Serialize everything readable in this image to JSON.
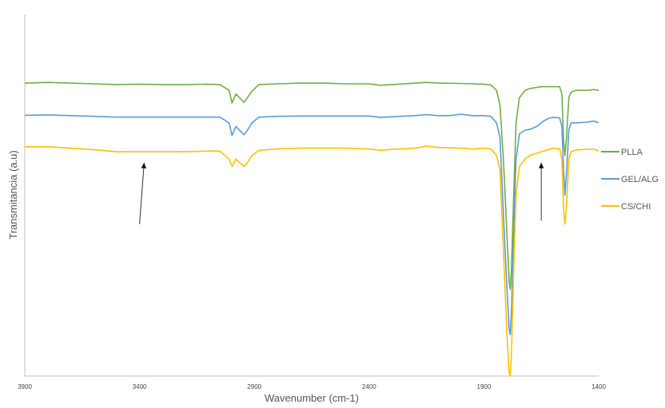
{
  "chart_data": {
    "type": "line",
    "title": "",
    "xlabel": "Wavenumber (cm-1)",
    "ylabel": "Transmitancia (a.u)",
    "xlim": [
      3900,
      1400
    ],
    "ylim": [
      0,
      1
    ],
    "x_reversed": true,
    "x_ticks": [
      "3900",
      "3400",
      "2900",
      "2400",
      "1900",
      "1400"
    ],
    "grid": false,
    "legend_position": "right",
    "series": [
      {
        "name": "PLLA",
        "color": "#70ad47",
        "points": [
          [
            3900,
            0.81
          ],
          [
            3800,
            0.812
          ],
          [
            3700,
            0.81
          ],
          [
            3600,
            0.808
          ],
          [
            3500,
            0.806
          ],
          [
            3400,
            0.807
          ],
          [
            3300,
            0.806
          ],
          [
            3200,
            0.806
          ],
          [
            3100,
            0.807
          ],
          [
            3050,
            0.806
          ],
          [
            3010,
            0.79
          ],
          [
            2997,
            0.755
          ],
          [
            2980,
            0.78
          ],
          [
            2965,
            0.77
          ],
          [
            2945,
            0.757
          ],
          [
            2930,
            0.77
          ],
          [
            2910,
            0.788
          ],
          [
            2880,
            0.806
          ],
          [
            2800,
            0.808
          ],
          [
            2700,
            0.81
          ],
          [
            2600,
            0.81
          ],
          [
            2500,
            0.808
          ],
          [
            2400,
            0.808
          ],
          [
            2350,
            0.804
          ],
          [
            2300,
            0.806
          ],
          [
            2200,
            0.81
          ],
          [
            2150,
            0.812
          ],
          [
            2100,
            0.81
          ],
          [
            2000,
            0.809
          ],
          [
            1950,
            0.808
          ],
          [
            1900,
            0.807
          ],
          [
            1870,
            0.805
          ],
          [
            1845,
            0.79
          ],
          [
            1830,
            0.75
          ],
          [
            1815,
            0.6
          ],
          [
            1800,
            0.4
          ],
          [
            1790,
            0.26
          ],
          [
            1785,
            0.24
          ],
          [
            1780,
            0.3
          ],
          [
            1770,
            0.5
          ],
          [
            1760,
            0.7
          ],
          [
            1745,
            0.77
          ],
          [
            1720,
            0.79
          ],
          [
            1700,
            0.795
          ],
          [
            1650,
            0.8
          ],
          [
            1600,
            0.8
          ],
          [
            1570,
            0.8
          ],
          [
            1560,
            0.78
          ],
          [
            1553,
            0.65
          ],
          [
            1547,
            0.61
          ],
          [
            1540,
            0.66
          ],
          [
            1530,
            0.77
          ],
          [
            1520,
            0.785
          ],
          [
            1500,
            0.79
          ],
          [
            1450,
            0.79
          ],
          [
            1420,
            0.792
          ],
          [
            1400,
            0.79
          ]
        ]
      },
      {
        "name": "GEL/ALG",
        "color": "#5b9bd5",
        "points": [
          [
            3900,
            0.721
          ],
          [
            3800,
            0.722
          ],
          [
            3700,
            0.72
          ],
          [
            3600,
            0.718
          ],
          [
            3500,
            0.716
          ],
          [
            3400,
            0.716
          ],
          [
            3300,
            0.716
          ],
          [
            3200,
            0.716
          ],
          [
            3100,
            0.716
          ],
          [
            3050,
            0.716
          ],
          [
            3010,
            0.7
          ],
          [
            2997,
            0.665
          ],
          [
            2980,
            0.69
          ],
          [
            2965,
            0.68
          ],
          [
            2945,
            0.667
          ],
          [
            2930,
            0.68
          ],
          [
            2910,
            0.7
          ],
          [
            2880,
            0.716
          ],
          [
            2800,
            0.718
          ],
          [
            2700,
            0.719
          ],
          [
            2600,
            0.719
          ],
          [
            2500,
            0.719
          ],
          [
            2400,
            0.719
          ],
          [
            2350,
            0.715
          ],
          [
            2300,
            0.717
          ],
          [
            2200,
            0.72
          ],
          [
            2150,
            0.723
          ],
          [
            2100,
            0.72
          ],
          [
            2050,
            0.72
          ],
          [
            2000,
            0.724
          ],
          [
            1950,
            0.72
          ],
          [
            1900,
            0.72
          ],
          [
            1870,
            0.718
          ],
          [
            1845,
            0.7
          ],
          [
            1830,
            0.66
          ],
          [
            1815,
            0.45
          ],
          [
            1800,
            0.25
          ],
          [
            1790,
            0.13
          ],
          [
            1785,
            0.115
          ],
          [
            1780,
            0.18
          ],
          [
            1770,
            0.4
          ],
          [
            1760,
            0.6
          ],
          [
            1745,
            0.67
          ],
          [
            1720,
            0.68
          ],
          [
            1700,
            0.682
          ],
          [
            1670,
            0.69
          ],
          [
            1640,
            0.705
          ],
          [
            1620,
            0.712
          ],
          [
            1600,
            0.715
          ],
          [
            1570,
            0.714
          ],
          [
            1560,
            0.69
          ],
          [
            1553,
            0.57
          ],
          [
            1547,
            0.5
          ],
          [
            1540,
            0.56
          ],
          [
            1530,
            0.68
          ],
          [
            1520,
            0.7
          ],
          [
            1500,
            0.7
          ],
          [
            1450,
            0.702
          ],
          [
            1420,
            0.705
          ],
          [
            1400,
            0.7
          ]
        ]
      },
      {
        "name": "CS/CHI",
        "color": "#ffc000",
        "points": [
          [
            3900,
            0.634
          ],
          [
            3800,
            0.634
          ],
          [
            3700,
            0.63
          ],
          [
            3600,
            0.626
          ],
          [
            3500,
            0.62
          ],
          [
            3450,
            0.62
          ],
          [
            3400,
            0.62
          ],
          [
            3300,
            0.62
          ],
          [
            3200,
            0.62
          ],
          [
            3100,
            0.622
          ],
          [
            3050,
            0.622
          ],
          [
            3010,
            0.6
          ],
          [
            2997,
            0.58
          ],
          [
            2980,
            0.6
          ],
          [
            2965,
            0.59
          ],
          [
            2945,
            0.58
          ],
          [
            2930,
            0.59
          ],
          [
            2910,
            0.61
          ],
          [
            2880,
            0.624
          ],
          [
            2800,
            0.628
          ],
          [
            2700,
            0.63
          ],
          [
            2600,
            0.63
          ],
          [
            2500,
            0.63
          ],
          [
            2400,
            0.628
          ],
          [
            2350,
            0.624
          ],
          [
            2300,
            0.627
          ],
          [
            2200,
            0.63
          ],
          [
            2150,
            0.636
          ],
          [
            2100,
            0.632
          ],
          [
            2000,
            0.63
          ],
          [
            1950,
            0.628
          ],
          [
            1900,
            0.63
          ],
          [
            1870,
            0.628
          ],
          [
            1845,
            0.61
          ],
          [
            1830,
            0.57
          ],
          [
            1815,
            0.35
          ],
          [
            1800,
            0.12
          ],
          [
            1790,
            0.01
          ],
          [
            1785,
            0.0
          ],
          [
            1780,
            0.06
          ],
          [
            1770,
            0.3
          ],
          [
            1760,
            0.5
          ],
          [
            1745,
            0.58
          ],
          [
            1720,
            0.6
          ],
          [
            1700,
            0.61
          ],
          [
            1650,
            0.62
          ],
          [
            1600,
            0.63
          ],
          [
            1570,
            0.628
          ],
          [
            1560,
            0.6
          ],
          [
            1553,
            0.46
          ],
          [
            1547,
            0.42
          ],
          [
            1540,
            0.47
          ],
          [
            1530,
            0.6
          ],
          [
            1520,
            0.62
          ],
          [
            1500,
            0.625
          ],
          [
            1450,
            0.627
          ],
          [
            1420,
            0.627
          ],
          [
            1400,
            0.622
          ]
        ]
      }
    ],
    "annotations": [
      {
        "type": "arrow",
        "from": [
          3400,
          0.42
        ],
        "to": [
          3380,
          0.59
        ]
      },
      {
        "type": "arrow",
        "from": [
          1650,
          0.43
        ],
        "to": [
          1650,
          0.59
        ]
      }
    ]
  }
}
